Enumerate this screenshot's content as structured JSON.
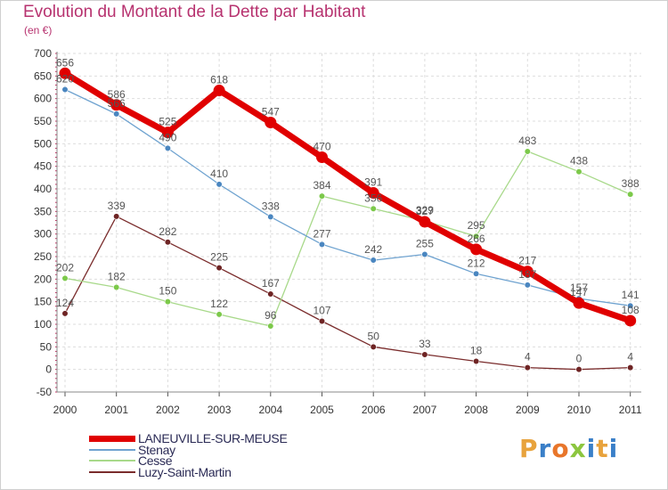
{
  "title": "Evolution du Montant de la Dette par Habitant",
  "subtitle": "(en €)",
  "logo": {
    "text": "Proxiti",
    "letters": [
      "P",
      "r",
      "o",
      "x",
      "i",
      "t",
      "i"
    ],
    "colors": [
      "#e8a33d",
      "#3a7fc8",
      "#e8762b",
      "#8cc63f",
      "#3a7fc8",
      "#e8a33d",
      "#3a7fc8"
    ]
  },
  "chart_data": {
    "type": "line",
    "x": [
      "2000",
      "2001",
      "2002",
      "2003",
      "2004",
      "2005",
      "2006",
      "2007",
      "2008",
      "2009",
      "2010",
      "2011"
    ],
    "ylim": [
      -50,
      700
    ],
    "yticks": [
      -50,
      0,
      50,
      100,
      150,
      200,
      250,
      300,
      350,
      400,
      450,
      500,
      550,
      600,
      650,
      700
    ],
    "ytick_labels": [
      "-50",
      "0",
      "50",
      "100",
      "150",
      "200",
      "250",
      "300",
      "350",
      "400",
      "450",
      "500",
      "550",
      "600",
      "650",
      "700"
    ],
    "grid": true,
    "legend_position": "bottom-left",
    "series": [
      {
        "name": "LANEUVILLE-SUR-MEUSE",
        "color": "#e00000",
        "marker_color": "#e00000",
        "label_color": "#555555",
        "width": 7,
        "values": [
          656,
          586,
          525,
          618,
          547,
          470,
          391,
          327,
          266,
          217,
          147,
          108
        ],
        "labels": [
          "656",
          "586",
          "525",
          "618",
          "547",
          "470",
          "391",
          "327",
          "266",
          "217",
          "147",
          "108"
        ]
      },
      {
        "name": "Stenay",
        "color": "#6fa3d0",
        "marker_color": "#4a86c0",
        "label_color": "#555555",
        "width": 1.3,
        "values": [
          620,
          566,
          490,
          410,
          338,
          277,
          242,
          255,
          212,
          187,
          157,
          141
        ],
        "labels": [
          "620",
          "566",
          "490",
          "410",
          "338",
          "277",
          "242",
          "255",
          "212",
          "187",
          "157",
          "141"
        ]
      },
      {
        "name": "Cesse",
        "color": "#a8d98a",
        "marker_color": "#7cc94a",
        "label_color": "#555555",
        "width": 1.3,
        "values": [
          202,
          182,
          150,
          122,
          96,
          384,
          356,
          329,
          295,
          483,
          438,
          388
        ],
        "labels": [
          "202",
          "182",
          "150",
          "122",
          "96",
          "384",
          "356",
          "329",
          "295",
          "483",
          "438",
          "388"
        ]
      },
      {
        "name": "Luzy-Saint-Martin",
        "color": "#7a2c2c",
        "marker_color": "#6e2424",
        "label_color": "#555555",
        "width": 1.3,
        "values": [
          124,
          339,
          282,
          225,
          167,
          107,
          50,
          33,
          18,
          4,
          0,
          4
        ],
        "labels": [
          "124",
          "339",
          "282",
          "225",
          "167",
          "107",
          "50",
          "33",
          "18",
          "4",
          "0",
          "4"
        ]
      }
    ]
  }
}
